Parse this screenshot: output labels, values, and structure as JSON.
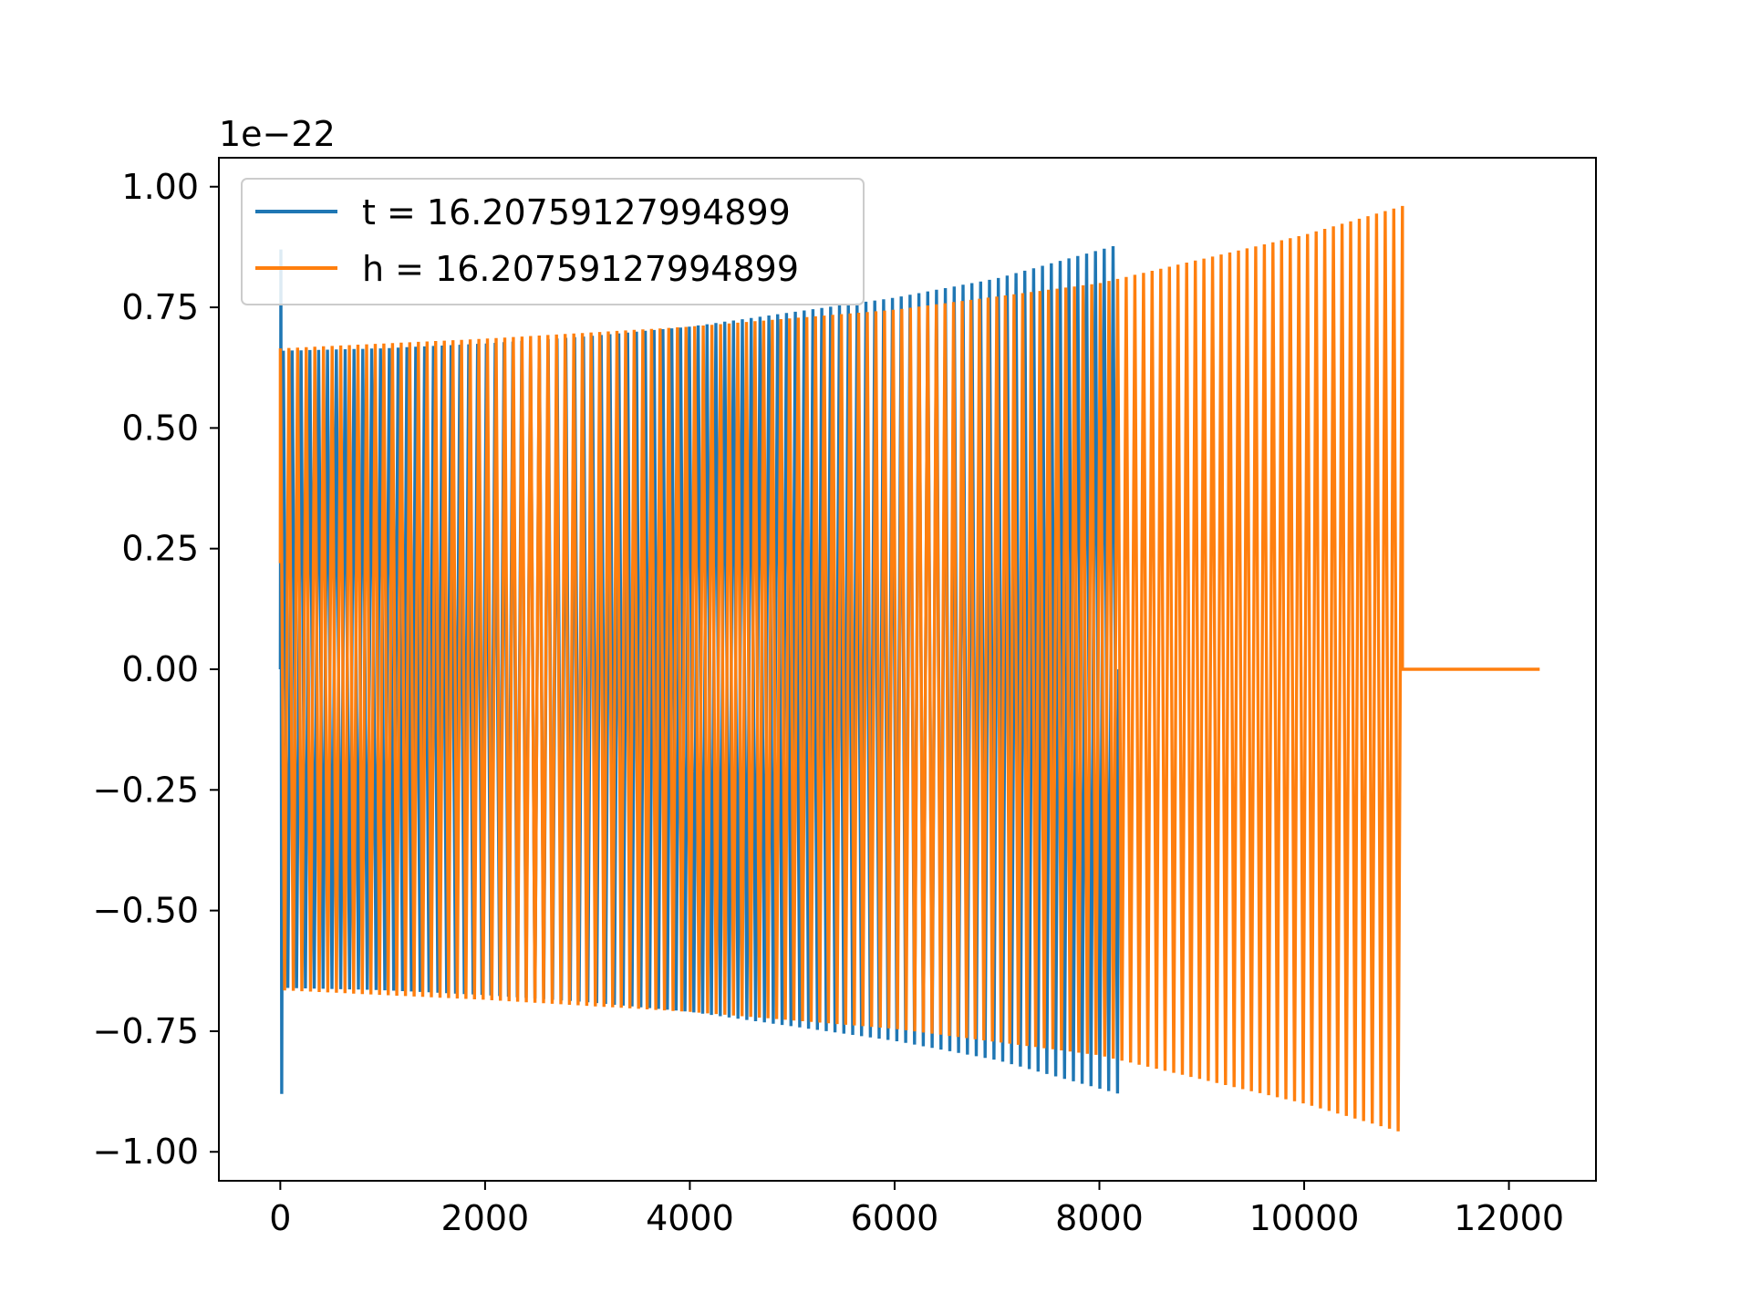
{
  "chart_data": {
    "type": "line",
    "title": "",
    "xlabel": "",
    "ylabel": "",
    "offset_text": "1e−22",
    "xlim": [
      -600,
      12850
    ],
    "ylim": [
      -1.06,
      1.06
    ],
    "x_ticks": [
      0,
      2000,
      4000,
      6000,
      8000,
      10000,
      12000
    ],
    "y_ticks": [
      1.0,
      0.75,
      0.5,
      0.25,
      0.0,
      -0.25,
      -0.5,
      -0.75,
      -1.0
    ],
    "x_tick_labels": [
      "0",
      "2000",
      "4000",
      "6000",
      "8000",
      "10000",
      "12000"
    ],
    "y_tick_labels": [
      "1.00",
      "0.75",
      "0.50",
      "0.25",
      "0.00",
      "−0.25",
      "−0.50",
      "−0.75",
      "−1.00"
    ],
    "grid": false,
    "legend": {
      "placement": "upper-left"
    },
    "series": [
      {
        "name": "t = 16.20759127994899",
        "color": "#1f77b4",
        "x_range": [
          0,
          8190
        ],
        "spike": {
          "x": 10,
          "peak": 0.87,
          "trough": -0.88
        },
        "envelope": {
          "x": [
            0,
            1000,
            2000,
            3000,
            4000,
            5000,
            6000,
            7000,
            8190
          ],
          "amplitude": [
            0.66,
            0.665,
            0.675,
            0.69,
            0.71,
            0.74,
            0.77,
            0.81,
            0.88
          ]
        },
        "cycles": 95
      },
      {
        "name": "h = 16.20759127994899",
        "color": "#ff7f0e",
        "x_range": [
          0,
          12300
        ],
        "active_until": 10960,
        "start_value": 0.22,
        "envelope": {
          "x": [
            0,
            2000,
            4000,
            6000,
            8000,
            10000,
            10960
          ],
          "amplitude": [
            0.665,
            0.685,
            0.71,
            0.745,
            0.8,
            0.9,
            0.96
          ]
        },
        "cycles": 130,
        "tail_value": 0.0
      }
    ]
  }
}
